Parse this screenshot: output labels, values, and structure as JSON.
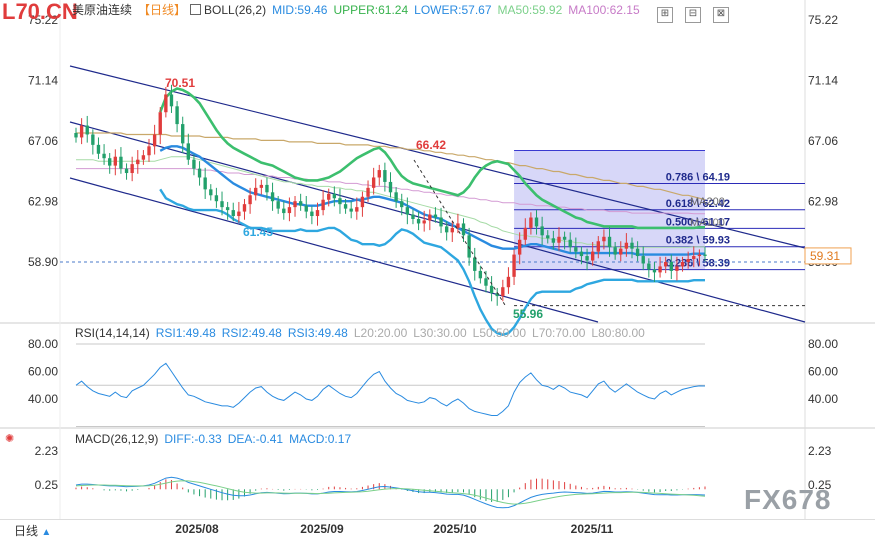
{
  "header": {
    "code": "L70.CN",
    "instrument": "美原油连续",
    "period": "【日线】",
    "boll": "BOLL(26,2)",
    "mid": "MID:59.46",
    "upper": "UPPER:61.24",
    "lower": "LOWER:57.67",
    "ma50": "MA50:59.92",
    "ma100": "MA100:62.15"
  },
  "rsi": {
    "label": "RSI(14,14,14)",
    "rsi1": "RSI1:49.48",
    "rsi2": "RSI2:49.48",
    "rsi3": "RSI3:49.48",
    "l20": "L20:20.00",
    "l30": "L30:30.00",
    "l50": "L50:50.00",
    "l70": "L70:70.00",
    "l80": "L80:80.00"
  },
  "macd": {
    "label": "MACD(26,12,9)",
    "diff": "DIFF:-0.33",
    "dea": "DEA:-0.41",
    "macd": "MACD:0.17"
  },
  "footer": {
    "timeframe": "日线",
    "watermark": "FX678"
  },
  "colors": {
    "up": "#e03c3c",
    "down": "#22a06b",
    "boll_upper": "#3cbf6e",
    "boll_mid": "#2a8be0",
    "boll_lower": "#2ea7e0",
    "ma50": "#a6dba6",
    "ma100": "#d39ad3",
    "ma200": "#c9a86a",
    "channel": "#1f2a8c",
    "fib_fill": "#c9c9f5"
  },
  "chart_data": [
    {
      "type": "candlestick",
      "panel": "price",
      "y_ticks": [
        75.22,
        71.14,
        67.06,
        62.98,
        58.9
      ],
      "ylim": [
        54.0,
        75.5
      ],
      "x_labels": [
        "2025/08",
        "2025/09",
        "2025/10",
        "2025/11"
      ],
      "current_price": "59.31",
      "annotations": [
        "70.51",
        "66.42",
        "61.45",
        "55.96"
      ],
      "fib_levels": [
        {
          "label": "0.786 \\ 64.19",
          "value": 64.19
        },
        {
          "label": "0.618 \\ 62.42",
          "value": 62.42
        },
        {
          "label": "0.500 \\ 61.17",
          "value": 61.17
        },
        {
          "label": "0.382 \\ 59.93",
          "value": 59.93
        },
        {
          "label": "0.236 \\ 58.39",
          "value": 58.39
        }
      ],
      "fib_range": [
        55.96,
        66.42
      ],
      "ma_labels": [
        "MA200",
        "MA100"
      ],
      "close": [
        67.3,
        68.1,
        67.5,
        66.8,
        66.2,
        65.9,
        65.4,
        66.0,
        65.2,
        64.9,
        65.5,
        65.8,
        66.1,
        66.7,
        67.5,
        69.0,
        70.2,
        69.4,
        68.2,
        66.9,
        65.8,
        65.2,
        64.6,
        63.8,
        63.4,
        63.0,
        62.6,
        62.4,
        62.0,
        62.3,
        62.8,
        63.4,
        63.9,
        64.1,
        63.6,
        63.0,
        62.5,
        62.2,
        62.6,
        63.0,
        62.7,
        62.3,
        62.0,
        62.4,
        63.1,
        63.5,
        63.2,
        62.8,
        62.5,
        62.3,
        62.6,
        63.3,
        63.9,
        64.6,
        65.1,
        64.3,
        63.6,
        63.0,
        62.6,
        62.1,
        61.8,
        61.5,
        61.7,
        62.1,
        61.9,
        61.3,
        60.9,
        61.2,
        61.5,
        60.7,
        59.2,
        58.3,
        57.8,
        57.3,
        56.8,
        56.6,
        57.2,
        57.9,
        59.4,
        60.4,
        61.2,
        61.9,
        61.3,
        60.7,
        60.5,
        60.2,
        60.6,
        60.4,
        59.9,
        59.6,
        59.3,
        59.0,
        59.6,
        60.3,
        60.6,
        59.9,
        59.4,
        59.8,
        60.2,
        59.8,
        59.3,
        58.8,
        58.4,
        58.2,
        58.6,
        58.9,
        58.3,
        58.6,
        58.9,
        59.1,
        59.3,
        59.4,
        59.31
      ],
      "boll_upper": [
        null,
        null,
        null,
        null,
        null,
        null,
        null,
        null,
        null,
        null,
        null,
        null,
        null,
        null,
        null,
        69.0,
        70.0,
        70.4,
        70.6,
        70.5,
        70.3,
        70.0,
        69.6,
        69.0,
        68.4,
        67.8,
        67.3,
        66.9,
        66.6,
        66.4,
        66.2,
        66.0,
        65.8,
        65.6,
        65.5,
        65.4,
        65.2,
        65.0,
        64.8,
        64.6,
        64.5,
        64.4,
        64.4,
        64.4,
        64.5,
        64.6,
        64.8,
        65.0,
        65.3,
        65.6,
        65.9,
        66.1,
        66.3,
        66.5,
        66.6,
        66.3,
        65.8,
        65.2,
        64.7,
        64.4,
        64.2,
        64.1,
        64.0,
        63.9,
        63.8,
        63.7,
        63.6,
        63.5,
        63.4,
        63.6,
        64.0,
        64.6,
        65.1,
        65.4,
        65.6,
        65.7,
        65.6,
        65.5,
        65.1,
        64.7,
        64.2,
        63.8,
        63.4,
        63.1,
        62.9,
        62.7,
        62.5,
        62.3,
        62.1,
        61.9,
        61.8,
        61.6,
        61.5,
        61.4,
        61.3,
        61.3,
        61.3,
        61.3,
        61.3,
        61.3,
        61.2,
        61.2,
        61.2,
        61.2,
        61.2,
        61.2,
        61.2,
        61.2,
        61.2,
        61.2,
        61.2,
        61.24,
        61.24
      ],
      "boll_mid": [
        null,
        null,
        null,
        null,
        null,
        null,
        null,
        null,
        null,
        null,
        null,
        null,
        null,
        null,
        null,
        66.4,
        66.6,
        66.7,
        66.7,
        66.6,
        66.4,
        66.2,
        66.0,
        65.7,
        65.4,
        65.1,
        64.8,
        64.5,
        64.2,
        64.0,
        63.8,
        63.6,
        63.5,
        63.4,
        63.3,
        63.2,
        63.1,
        63.0,
        62.9,
        62.8,
        62.8,
        62.7,
        62.7,
        62.7,
        62.8,
        62.9,
        63.0,
        63.0,
        63.0,
        63.0,
        63.1,
        63.1,
        63.2,
        63.3,
        63.3,
        63.2,
        63.1,
        63.0,
        62.9,
        62.7,
        62.5,
        62.3,
        62.1,
        62.0,
        61.9,
        61.8,
        61.6,
        61.4,
        61.2,
        61.0,
        60.8,
        60.6,
        60.4,
        60.2,
        60.0,
        59.9,
        59.8,
        59.8,
        59.8,
        59.9,
        60.0,
        60.1,
        60.1,
        60.0,
        59.9,
        59.8,
        59.7,
        59.6,
        59.5,
        59.5,
        59.5,
        59.5,
        59.5,
        59.5,
        59.5,
        59.5,
        59.5,
        59.5,
        59.5,
        59.5,
        59.4,
        59.4,
        59.4,
        59.4,
        59.4,
        59.4,
        59.4,
        59.4,
        59.4,
        59.4,
        59.46,
        59.46,
        59.46
      ],
      "boll_lower": [
        null,
        null,
        null,
        null,
        null,
        null,
        null,
        null,
        null,
        null,
        null,
        null,
        null,
        null,
        null,
        63.8,
        63.2,
        63.0,
        62.8,
        62.7,
        62.5,
        62.4,
        62.4,
        62.4,
        62.4,
        62.4,
        62.3,
        62.1,
        61.8,
        61.6,
        61.4,
        61.2,
        61.2,
        61.2,
        61.1,
        61.0,
        61.0,
        61.0,
        61.0,
        61.0,
        61.1,
        61.0,
        61.0,
        61.0,
        61.1,
        61.2,
        61.2,
        61.0,
        60.7,
        60.4,
        60.3,
        60.1,
        60.1,
        60.1,
        60.0,
        60.1,
        60.4,
        60.8,
        61.1,
        61.0,
        60.8,
        60.5,
        60.2,
        60.1,
        60.0,
        59.9,
        59.6,
        59.3,
        59.0,
        58.4,
        57.6,
        56.6,
        55.7,
        55.0,
        54.4,
        54.1,
        54.0,
        54.1,
        54.5,
        55.1,
        55.8,
        56.4,
        56.8,
        56.9,
        56.9,
        56.9,
        56.9,
        56.9,
        56.9,
        57.1,
        57.2,
        57.4,
        57.5,
        57.6,
        57.7,
        57.7,
        57.7,
        57.7,
        57.7,
        57.7,
        57.6,
        57.6,
        57.6,
        57.6,
        57.6,
        57.6,
        57.6,
        57.6,
        57.6,
        57.6,
        57.67,
        57.67,
        57.67
      ],
      "ma50": [
        65.8,
        65.8,
        65.8,
        65.8,
        65.7,
        65.7,
        65.7,
        65.7,
        65.7,
        65.7,
        65.7,
        65.7,
        65.7,
        65.7,
        65.7,
        65.8,
        65.9,
        66.0,
        66.0,
        66.0,
        66.0,
        65.9,
        65.8,
        65.7,
        65.6,
        65.5,
        65.4,
        65.3,
        65.2,
        65.1,
        65.0,
        64.9,
        64.8,
        64.7,
        64.6,
        64.5,
        64.4,
        64.3,
        64.3,
        64.2,
        64.2,
        64.1,
        64.1,
        64.0,
        64.0,
        64.0,
        63.9,
        63.9,
        63.8,
        63.8,
        63.7,
        63.7,
        63.6,
        63.6,
        63.5,
        63.4,
        63.3,
        63.2,
        63.1,
        63.0,
        62.9,
        62.8,
        62.7,
        62.6,
        62.5,
        62.4,
        62.3,
        62.2,
        62.1,
        62.0,
        61.9,
        61.8,
        61.6,
        61.5,
        61.3,
        61.2,
        61.0,
        60.9,
        60.8,
        60.7,
        60.7,
        60.6,
        60.6,
        60.5,
        60.5,
        60.4,
        60.4,
        60.3,
        60.3,
        60.2,
        60.2,
        60.1,
        60.1,
        60.0,
        60.0,
        60.0,
        59.9,
        59.9,
        59.9,
        59.9,
        59.9,
        59.9,
        59.9,
        59.9,
        59.9,
        59.9,
        59.9,
        59.9,
        59.9,
        59.9,
        59.92,
        59.92,
        59.92
      ],
      "ma100": [
        65.2,
        65.2,
        65.2,
        65.2,
        65.2,
        65.2,
        65.2,
        65.2,
        65.2,
        65.2,
        65.2,
        65.2,
        65.2,
        65.2,
        65.2,
        65.2,
        65.2,
        65.2,
        65.2,
        65.2,
        65.2,
        65.2,
        65.1,
        65.1,
        65.1,
        65.0,
        65.0,
        64.9,
        64.9,
        64.9,
        64.8,
        64.8,
        64.8,
        64.7,
        64.7,
        64.7,
        64.6,
        64.6,
        64.6,
        64.5,
        64.5,
        64.5,
        64.4,
        64.4,
        64.4,
        64.3,
        64.3,
        64.3,
        64.2,
        64.2,
        64.2,
        64.1,
        64.1,
        64.0,
        64.0,
        64.0,
        63.9,
        63.9,
        63.8,
        63.8,
        63.7,
        63.7,
        63.6,
        63.6,
        63.5,
        63.5,
        63.4,
        63.4,
        63.3,
        63.3,
        63.2,
        63.2,
        63.1,
        63.1,
        63.0,
        63.0,
        62.9,
        62.9,
        62.9,
        62.8,
        62.8,
        62.8,
        62.7,
        62.7,
        62.7,
        62.6,
        62.6,
        62.6,
        62.5,
        62.5,
        62.5,
        62.4,
        62.4,
        62.4,
        62.4,
        62.3,
        62.3,
        62.3,
        62.3,
        62.2,
        62.2,
        62.2,
        62.2,
        62.2,
        62.2,
        62.2,
        62.2,
        62.2,
        62.2,
        62.2,
        62.15,
        62.15,
        62.15
      ],
      "ma200": [
        67.6,
        67.6,
        67.6,
        67.6,
        67.6,
        67.6,
        67.6,
        67.6,
        67.6,
        67.5,
        67.5,
        67.5,
        67.5,
        67.5,
        67.5,
        67.5,
        67.5,
        67.4,
        67.4,
        67.4,
        67.4,
        67.4,
        67.4,
        67.3,
        67.3,
        67.3,
        67.3,
        67.3,
        67.2,
        67.2,
        67.2,
        67.2,
        67.2,
        67.1,
        67.1,
        67.1,
        67.1,
        67.1,
        67.0,
        67.0,
        67.0,
        67.0,
        67.0,
        66.9,
        66.9,
        66.9,
        66.9,
        66.9,
        66.8,
        66.8,
        66.8,
        66.8,
        66.8,
        66.7,
        66.7,
        66.7,
        66.6,
        66.6,
        66.6,
        66.5,
        66.5,
        66.5,
        66.4,
        66.4,
        66.3,
        66.3,
        66.2,
        66.2,
        66.1,
        66.1,
        66.0,
        66.0,
        65.9,
        65.8,
        65.8,
        65.7,
        65.6,
        65.6,
        65.5,
        65.4,
        65.4,
        65.3,
        65.2,
        65.2,
        65.1,
        65.0,
        65.0,
        64.9,
        64.8,
        64.8,
        64.7,
        64.6,
        64.6,
        64.5,
        64.4,
        64.4,
        64.3,
        64.2,
        64.2,
        64.1,
        64.0,
        64.0,
        63.9,
        63.8,
        63.8,
        63.7,
        63.6,
        63.5,
        63.4,
        63.4,
        63.3,
        63.2,
        63.1
      ]
    },
    {
      "type": "line",
      "panel": "rsi",
      "y_ticks": [
        80.0,
        60.0,
        40.0
      ],
      "ylim": [
        25,
        85
      ],
      "levels": [
        80,
        50,
        20
      ],
      "series": [
        {
          "name": "RSI1",
          "values": [
            50,
            53,
            49,
            46,
            44,
            43,
            42,
            45,
            42,
            41,
            46,
            48,
            50,
            54,
            58,
            63,
            66,
            60,
            54,
            48,
            43,
            42,
            40,
            38,
            37,
            36,
            35,
            35,
            34,
            37,
            41,
            45,
            48,
            49,
            45,
            42,
            40,
            39,
            42,
            45,
            43,
            40,
            39,
            42,
            47,
            50,
            47,
            44,
            42,
            41,
            44,
            49,
            54,
            58,
            60,
            53,
            48,
            44,
            42,
            39,
            38,
            37,
            38,
            41,
            40,
            37,
            35,
            38,
            40,
            37,
            33,
            31,
            30,
            29,
            28,
            28,
            31,
            35,
            45,
            52,
            56,
            59,
            54,
            50,
            49,
            47,
            50,
            48,
            45,
            44,
            43,
            41,
            46,
            51,
            53,
            48,
            45,
            48,
            51,
            48,
            45,
            43,
            41,
            40,
            44,
            46,
            43,
            45,
            47,
            48,
            49,
            49.5,
            49.48
          ]
        }
      ]
    },
    {
      "type": "bar",
      "panel": "macd",
      "y_ticks": [
        2.23,
        0.25
      ],
      "ylim": [
        -1.7,
        2.6
      ],
      "series": [
        {
          "name": "DIFF",
          "values": [
            0.25,
            0.3,
            0.3,
            0.28,
            0.25,
            0.22,
            0.2,
            0.2,
            0.18,
            0.15,
            0.16,
            0.18,
            0.2,
            0.25,
            0.35,
            0.5,
            0.65,
            0.7,
            0.65,
            0.55,
            0.4,
            0.3,
            0.2,
            0.1,
            0.0,
            -0.1,
            -0.2,
            -0.28,
            -0.35,
            -0.38,
            -0.38,
            -0.33,
            -0.26,
            -0.2,
            -0.18,
            -0.2,
            -0.23,
            -0.26,
            -0.25,
            -0.22,
            -0.22,
            -0.24,
            -0.27,
            -0.27,
            -0.22,
            -0.16,
            -0.13,
            -0.13,
            -0.14,
            -0.15,
            -0.13,
            -0.07,
            0.0,
            0.08,
            0.15,
            0.16,
            0.13,
            0.08,
            0.03,
            -0.03,
            -0.08,
            -0.14,
            -0.17,
            -0.17,
            -0.19,
            -0.23,
            -0.28,
            -0.3,
            -0.3,
            -0.34,
            -0.45,
            -0.58,
            -0.72,
            -0.85,
            -0.97,
            -1.06,
            -1.08,
            -1.06,
            -0.95,
            -0.8,
            -0.63,
            -0.47,
            -0.37,
            -0.3,
            -0.25,
            -0.22,
            -0.18,
            -0.16,
            -0.17,
            -0.19,
            -0.21,
            -0.24,
            -0.22,
            -0.17,
            -0.12,
            -0.13,
            -0.16,
            -0.16,
            -0.14,
            -0.15,
            -0.18,
            -0.22,
            -0.27,
            -0.31,
            -0.32,
            -0.31,
            -0.33,
            -0.33,
            -0.32,
            -0.31,
            -0.31,
            -0.32,
            -0.33
          ]
        },
        {
          "name": "DEA",
          "values": [
            0.2,
            0.22,
            0.24,
            0.25,
            0.25,
            0.25,
            0.24,
            0.23,
            0.22,
            0.21,
            0.2,
            0.2,
            0.2,
            0.21,
            0.24,
            0.29,
            0.36,
            0.43,
            0.48,
            0.5,
            0.49,
            0.45,
            0.4,
            0.34,
            0.27,
            0.2,
            0.12,
            0.04,
            -0.04,
            -0.11,
            -0.17,
            -0.2,
            -0.22,
            -0.22,
            -0.21,
            -0.21,
            -0.21,
            -0.22,
            -0.23,
            -0.23,
            -0.23,
            -0.23,
            -0.24,
            -0.25,
            -0.24,
            -0.23,
            -0.21,
            -0.19,
            -0.18,
            -0.17,
            -0.16,
            -0.14,
            -0.11,
            -0.07,
            -0.03,
            0.01,
            0.03,
            0.04,
            0.04,
            0.02,
            0.0,
            -0.03,
            -0.06,
            -0.09,
            -0.11,
            -0.14,
            -0.17,
            -0.2,
            -0.22,
            -0.25,
            -0.29,
            -0.35,
            -0.42,
            -0.51,
            -0.6,
            -0.69,
            -0.77,
            -0.83,
            -0.86,
            -0.85,
            -0.81,
            -0.75,
            -0.68,
            -0.61,
            -0.54,
            -0.48,
            -0.42,
            -0.37,
            -0.33,
            -0.3,
            -0.28,
            -0.27,
            -0.26,
            -0.24,
            -0.22,
            -0.2,
            -0.19,
            -0.19,
            -0.18,
            -0.17,
            -0.17,
            -0.18,
            -0.2,
            -0.22,
            -0.24,
            -0.26,
            -0.28,
            -0.3,
            -0.31,
            -0.33,
            -0.35,
            -0.38,
            -0.41
          ]
        }
      ]
    }
  ]
}
